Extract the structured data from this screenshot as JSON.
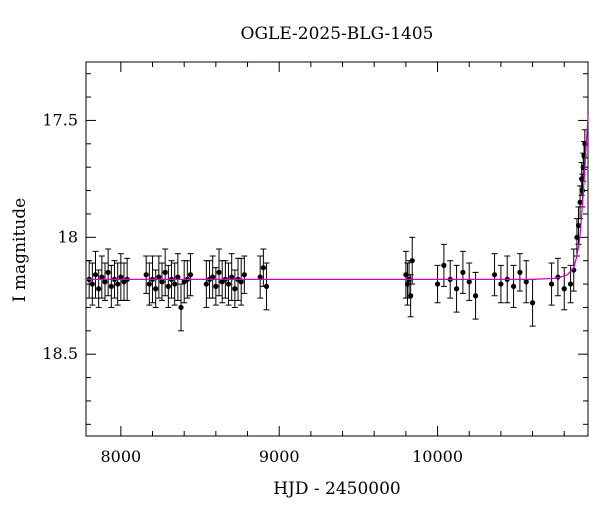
{
  "chart_data": {
    "type": "scatter",
    "title": "OGLE-2025-BLG-1405",
    "xlabel": "HJD - 2450000",
    "ylabel": "I magnitude",
    "xlim": [
      7780,
      10950
    ],
    "ylim": [
      18.85,
      17.25
    ],
    "y_inverted": true,
    "xticks": [
      8000,
      9000,
      10000
    ],
    "xtick_labels": [
      "8000",
      "9000",
      "10000"
    ],
    "yticks": [
      17.5,
      18,
      18.5
    ],
    "ytick_labels": [
      "17.5",
      "18",
      "18.5"
    ],
    "grid": false,
    "model_color": "#cc00cc",
    "point_color": "#000000",
    "baseline_mag": 18.18,
    "series": [
      {
        "kind": "observations",
        "x": [
          7800,
          7820,
          7840,
          7860,
          7880,
          7900,
          7920,
          7940,
          7960,
          7980,
          8000,
          8020,
          8040,
          8160,
          8180,
          8200,
          8220,
          8240,
          8260,
          8280,
          8300,
          8320,
          8340,
          8360,
          8380,
          8400,
          8420,
          8440,
          8540,
          8560,
          8580,
          8600,
          8620,
          8640,
          8660,
          8680,
          8700,
          8720,
          8740,
          8760,
          8780,
          8880,
          8900,
          8920,
          9800,
          9810,
          9820,
          9830,
          9840,
          10000,
          10040,
          10080,
          10120,
          10160,
          10200,
          10240,
          10360,
          10400,
          10440,
          10480,
          10520,
          10560,
          10600,
          10720,
          10760,
          10800,
          10840,
          10860,
          10880,
          10890,
          10900,
          10910,
          10915,
          10920,
          10925,
          10930
        ],
        "y": [
          18.18,
          18.2,
          18.16,
          18.22,
          18.17,
          18.19,
          18.15,
          18.21,
          18.18,
          18.2,
          18.17,
          18.19,
          18.18,
          18.16,
          18.2,
          18.18,
          18.22,
          18.17,
          18.19,
          18.15,
          18.21,
          18.18,
          18.2,
          18.17,
          18.3,
          18.19,
          18.18,
          18.16,
          18.2,
          18.18,
          18.17,
          18.21,
          18.15,
          18.19,
          18.18,
          18.2,
          18.17,
          18.22,
          18.18,
          18.19,
          18.16,
          18.17,
          18.13,
          18.21,
          18.16,
          18.2,
          18.18,
          18.25,
          18.1,
          18.2,
          18.12,
          18.18,
          18.22,
          18.15,
          18.19,
          18.25,
          18.16,
          18.2,
          18.18,
          18.21,
          18.15,
          18.19,
          18.28,
          18.2,
          18.17,
          18.22,
          18.2,
          18.14,
          18.0,
          17.95,
          17.85,
          17.75,
          17.8,
          17.7,
          17.65,
          17.6
        ],
        "err": [
          0.08,
          0.09,
          0.1,
          0.08,
          0.09,
          0.08,
          0.1,
          0.09,
          0.08,
          0.09,
          0.1,
          0.08,
          0.09,
          0.08,
          0.09,
          0.1,
          0.08,
          0.09,
          0.08,
          0.1,
          0.09,
          0.08,
          0.09,
          0.1,
          0.1,
          0.09,
          0.08,
          0.09,
          0.1,
          0.08,
          0.09,
          0.08,
          0.1,
          0.09,
          0.08,
          0.09,
          0.1,
          0.08,
          0.09,
          0.1,
          0.08,
          0.09,
          0.08,
          0.1,
          0.1,
          0.09,
          0.08,
          0.09,
          0.1,
          0.08,
          0.09,
          0.08,
          0.1,
          0.09,
          0.08,
          0.1,
          0.09,
          0.08,
          0.1,
          0.09,
          0.08,
          0.09,
          0.1,
          0.09,
          0.08,
          0.09,
          0.08,
          0.09,
          0.08,
          0.08,
          0.07,
          0.07,
          0.07,
          0.06,
          0.06,
          0.06
        ]
      },
      {
        "kind": "model",
        "x": [
          7780,
          8500,
          9200,
          9800,
          10300,
          10600,
          10750,
          10820,
          10860,
          10880,
          10895,
          10905,
          10915,
          10925,
          10935,
          10945,
          10950
        ],
        "y": [
          18.18,
          18.18,
          18.18,
          18.18,
          18.18,
          18.18,
          18.175,
          18.16,
          18.13,
          18.08,
          18.02,
          17.95,
          17.86,
          17.76,
          17.65,
          17.54,
          17.48
        ]
      }
    ]
  }
}
